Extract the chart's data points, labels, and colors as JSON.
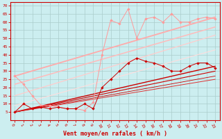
{
  "xlabel": "Vent moyen/en rafales ( km/h )",
  "background_color": "#cceef0",
  "grid_color": "#aacccc",
  "text_color": "#cc0000",
  "xlim": [
    -0.5,
    23.5
  ],
  "ylim": [
    0,
    72
  ],
  "yticks": [
    5,
    10,
    15,
    20,
    25,
    30,
    35,
    40,
    45,
    50,
    55,
    60,
    65,
    70
  ],
  "xticks": [
    0,
    1,
    2,
    3,
    4,
    5,
    6,
    7,
    8,
    9,
    10,
    11,
    12,
    13,
    14,
    15,
    16,
    17,
    18,
    19,
    20,
    21,
    22,
    23
  ],
  "dark_line_x": [
    0,
    1,
    2,
    3,
    4,
    5,
    6,
    7,
    8,
    9,
    10,
    11,
    12,
    13,
    14,
    15,
    16,
    17,
    18,
    19,
    20,
    21,
    22,
    23
  ],
  "dark_line_y": [
    5,
    10,
    7,
    8,
    7,
    8,
    7,
    7,
    10,
    7,
    20,
    25,
    30,
    35,
    38,
    36,
    35,
    33,
    30,
    30,
    33,
    35,
    35,
    32
  ],
  "dark_color": "#cc0000",
  "light_line_x": [
    0,
    1,
    2,
    3,
    4,
    5,
    6,
    7,
    8,
    9,
    10,
    11,
    12,
    13,
    14,
    15,
    16,
    17,
    18,
    19,
    20,
    21,
    22,
    23
  ],
  "light_line_y": [
    27,
    22,
    15,
    9,
    9,
    8,
    7,
    7,
    6,
    11,
    40,
    61,
    59,
    68,
    50,
    62,
    63,
    60,
    65,
    60,
    60,
    62,
    63,
    62
  ],
  "light_color": "#ff9999",
  "reg_lines": [
    {
      "x0": 0,
      "y0": 5,
      "x1": 23,
      "y1": 33,
      "color": "#cc0000",
      "lw": 1.0
    },
    {
      "x0": 0,
      "y0": 5,
      "x1": 23,
      "y1": 30,
      "color": "#cc0000",
      "lw": 0.8
    },
    {
      "x0": 0,
      "y0": 5,
      "x1": 23,
      "y1": 27,
      "color": "#cc0000",
      "lw": 0.6
    },
    {
      "x0": 0,
      "y0": 5,
      "x1": 23,
      "y1": 25,
      "color": "#dd3333",
      "lw": 0.7
    },
    {
      "x0": 0,
      "y0": 27,
      "x1": 23,
      "y1": 63,
      "color": "#ffaaaa",
      "lw": 1.3
    },
    {
      "x0": 0,
      "y0": 22,
      "x1": 23,
      "y1": 57,
      "color": "#ffbbbb",
      "lw": 1.1
    },
    {
      "x0": 0,
      "y0": 15,
      "x1": 23,
      "y1": 52,
      "color": "#ffcccc",
      "lw": 0.9
    },
    {
      "x0": 0,
      "y0": 9,
      "x1": 23,
      "y1": 43,
      "color": "#ffdddd",
      "lw": 0.8
    }
  ]
}
